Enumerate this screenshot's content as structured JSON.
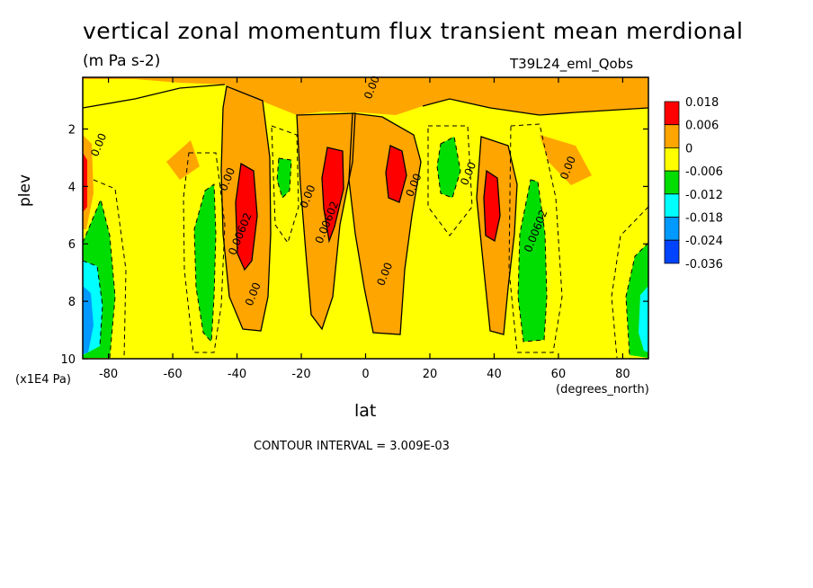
{
  "chart_data": {
    "type": "heatmap",
    "title": "vertical zonal momentum flux transient mean merdional",
    "subtitle": "(m Pa s-2)",
    "run_label": "T39L24_eml_Qobs",
    "xlabel": "lat",
    "x_units": "(degrees_north)",
    "ylabel": "plev",
    "y_units": "(x1E4 Pa)",
    "contour_interval_text": "CONTOUR INTERVAL = 3.009E-03",
    "xlim": [
      -88,
      88
    ],
    "ylim": [
      0.2,
      10
    ],
    "y_inverted": true,
    "x_ticks": [
      "-80",
      "-60",
      "-40",
      "-20",
      "0",
      "20",
      "40",
      "60",
      "80"
    ],
    "x_tick_values": [
      -80,
      -60,
      -40,
      -20,
      0,
      20,
      40,
      60,
      80
    ],
    "y_ticks": [
      "2",
      "4",
      "6",
      "8",
      "10"
    ],
    "y_tick_values": [
      2,
      4,
      6,
      8,
      10
    ],
    "colorbar": {
      "labels": [
        "0.018",
        "0.006",
        "0",
        "-0.006",
        "-0.012",
        "-0.018",
        "-0.024",
        "-0.036"
      ],
      "colors": [
        "#ff0000",
        "#ffa500",
        "#ffff00",
        "#00dd00",
        "#00ffff",
        "#0099ff",
        "#0044ff"
      ]
    },
    "contour_labels": [
      {
        "text": "0.00",
        "x": 3,
        "y": 0.6
      },
      {
        "text": "0.00",
        "x": -82,
        "y": 2.6
      },
      {
        "text": "0.00",
        "x": -42,
        "y": 3.8
      },
      {
        "text": "0.00602",
        "x": -38,
        "y": 5.7
      },
      {
        "text": "0.00",
        "x": -34,
        "y": 7.8
      },
      {
        "text": "0.00",
        "x": -17,
        "y": 4.4
      },
      {
        "text": "0.00602",
        "x": -11,
        "y": 5.3
      },
      {
        "text": "0.00",
        "x": 7,
        "y": 7.1
      },
      {
        "text": "0.00",
        "x": 16,
        "y": 4.0
      },
      {
        "text": "0.00",
        "x": 33,
        "y": 3.6
      },
      {
        "text": "0.00602",
        "x": 54,
        "y": 5.6
      },
      {
        "text": "0.00",
        "x": 64,
        "y": 3.4
      }
    ]
  }
}
